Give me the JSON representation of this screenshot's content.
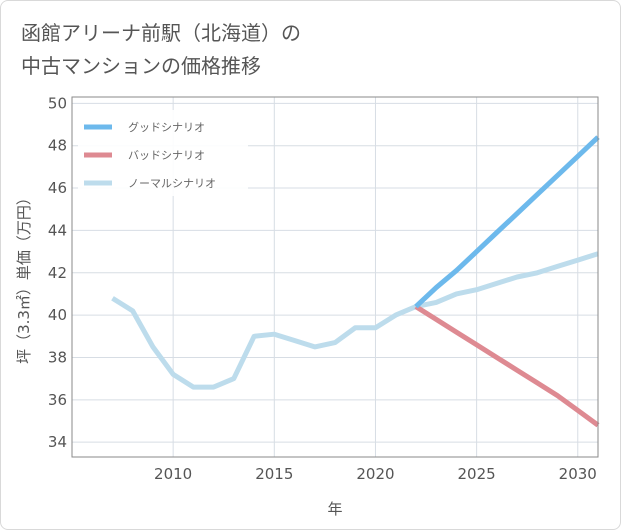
{
  "title_lines": [
    "函館アリーナ前駅（北海道）の",
    "中古マンションの価格推移"
  ],
  "colors": {
    "good": "#6db9ec",
    "bad": "#de8a92",
    "normal": "#bddcec",
    "grid": "#d7dde4",
    "axis": "#8a8a8a"
  },
  "chart_data": {
    "type": "line",
    "title": "函館アリーナ前駅（北海道）の中古マンションの価格推移",
    "xlabel": "年",
    "ylabel": "坪（3.3㎡）単価（万円）",
    "xlim": [
      2005,
      2031
    ],
    "ylim": [
      33.3,
      50.3
    ],
    "x_ticks": [
      2010,
      2015,
      2020,
      2025,
      2030
    ],
    "y_ticks": [
      34,
      36,
      38,
      40,
      42,
      44,
      46,
      48,
      50
    ],
    "grid": true,
    "legend_position": "top-left",
    "series": [
      {
        "name": "グッドシナリオ",
        "key": "good",
        "x": [
          2022,
          2023,
          2024,
          2025,
          2026,
          2027,
          2028,
          2029,
          2030,
          2031
        ],
        "values": [
          40.4,
          41.3,
          42.1,
          43.0,
          43.9,
          44.8,
          45.7,
          46.6,
          47.5,
          48.4
        ]
      },
      {
        "name": "バッドシナリオ",
        "key": "bad",
        "x": [
          2022,
          2023,
          2024,
          2025,
          2026,
          2027,
          2028,
          2029,
          2030,
          2031
        ],
        "values": [
          40.4,
          39.8,
          39.2,
          38.6,
          38.0,
          37.4,
          36.8,
          36.2,
          35.5,
          34.8
        ]
      },
      {
        "name": "ノーマルシナリオ",
        "key": "normal",
        "x": [
          2007,
          2008,
          2009,
          2010,
          2011,
          2012,
          2013,
          2014,
          2015,
          2016,
          2017,
          2018,
          2019,
          2020,
          2021,
          2022,
          2023,
          2024,
          2025,
          2026,
          2027,
          2028,
          2029,
          2030,
          2031
        ],
        "values": [
          40.8,
          40.2,
          38.5,
          37.2,
          36.6,
          36.6,
          37.0,
          39.0,
          39.1,
          38.8,
          38.5,
          38.7,
          39.4,
          39.4,
          40.0,
          40.4,
          40.6,
          41.0,
          41.2,
          41.5,
          41.8,
          42.0,
          42.3,
          42.6,
          42.9
        ]
      }
    ]
  }
}
